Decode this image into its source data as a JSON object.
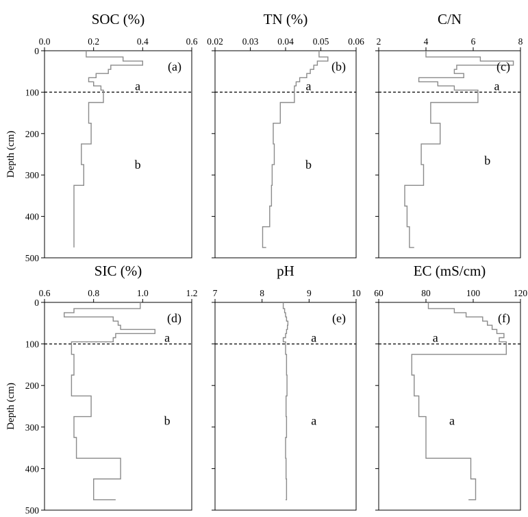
{
  "chart_data": [
    {
      "type": "line",
      "title": "SOC (%)",
      "panel_label": "(a)",
      "xlim": [
        0,
        0.6
      ],
      "xticks": [
        "0.0",
        "0.2",
        "0.4",
        "0.6"
      ],
      "ylabel": "Depth (cm)",
      "ylim": [
        0,
        500
      ],
      "yticks": [
        "0",
        "100",
        "200",
        "300",
        "400",
        "500"
      ],
      "reference_line_depth": 100,
      "significance_labels": [
        {
          "text": "a",
          "x": 0.38,
          "depth": 85
        },
        {
          "text": "b",
          "x": 0.38,
          "depth": 275
        }
      ],
      "series": [
        {
          "depth": [
            0,
            15,
            25,
            35,
            45,
            55,
            65,
            75,
            85,
            95,
            125,
            175,
            225,
            275,
            325,
            375,
            425,
            475
          ],
          "values": [
            0.17,
            0.32,
            0.4,
            0.27,
            0.26,
            0.21,
            0.18,
            0.2,
            0.23,
            0.24,
            0.18,
            0.19,
            0.15,
            0.16,
            0.12,
            0.12,
            0.12,
            0.12
          ]
        }
      ]
    },
    {
      "type": "line",
      "title": "TN (%)",
      "panel_label": "(b)",
      "xlim": [
        0.02,
        0.06
      ],
      "xticks": [
        "0.02",
        "0.03",
        "0.04",
        "0.05",
        "0.06"
      ],
      "ylim": [
        0,
        500
      ],
      "reference_line_depth": 100,
      "significance_labels": [
        {
          "text": "a",
          "x": 0.0465,
          "depth": 85
        },
        {
          "text": "b",
          "x": 0.0465,
          "depth": 275
        }
      ],
      "series": [
        {
          "depth": [
            0,
            15,
            25,
            35,
            45,
            55,
            65,
            75,
            85,
            95,
            125,
            175,
            225,
            275,
            325,
            375,
            425,
            475
          ],
          "values": [
            0.0495,
            0.052,
            0.049,
            0.048,
            0.047,
            0.046,
            0.044,
            0.043,
            0.0425,
            0.0425,
            0.0385,
            0.0365,
            0.0368,
            0.0362,
            0.036,
            0.0355,
            0.0335,
            0.0345
          ]
        }
      ]
    },
    {
      "type": "line",
      "title": "C/N",
      "panel_label": "(c)",
      "xlim": [
        2,
        8
      ],
      "xticks": [
        "2",
        "4",
        "6",
        "8"
      ],
      "ylim": [
        0,
        500
      ],
      "reference_line_depth": 100,
      "significance_labels": [
        {
          "text": "a",
          "x": 7.0,
          "depth": 85
        },
        {
          "text": "b",
          "x": 6.6,
          "depth": 265
        }
      ],
      "series": [
        {
          "depth": [
            0,
            15,
            25,
            35,
            45,
            55,
            65,
            75,
            85,
            95,
            125,
            175,
            225,
            275,
            325,
            375,
            425,
            475
          ],
          "values": [
            4.0,
            6.3,
            7.7,
            5.3,
            5.2,
            5.6,
            3.7,
            4.5,
            5.2,
            6.2,
            4.2,
            4.6,
            3.8,
            3.9,
            3.1,
            3.2,
            3.3,
            3.5
          ]
        }
      ]
    },
    {
      "type": "line",
      "title": "SIC (%)",
      "panel_label": "(d)",
      "xlim": [
        0.6,
        1.2
      ],
      "xticks": [
        "0.6",
        "0.8",
        "1.0",
        "1.2"
      ],
      "ylabel": "Depth (cm)",
      "ylim": [
        0,
        500
      ],
      "yticks": [
        "0",
        "100",
        "200",
        "300",
        "400",
        "500"
      ],
      "reference_line_depth": 100,
      "significance_labels": [
        {
          "text": "a",
          "x": 1.1,
          "depth": 85
        },
        {
          "text": "b",
          "x": 1.1,
          "depth": 285
        }
      ],
      "series": [
        {
          "depth": [
            0,
            15,
            25,
            35,
            45,
            55,
            65,
            75,
            85,
            95,
            125,
            175,
            225,
            275,
            325,
            375,
            425,
            475
          ],
          "values": [
            0.99,
            0.72,
            0.68,
            0.88,
            0.9,
            0.91,
            1.05,
            0.89,
            0.88,
            0.71,
            0.72,
            0.71,
            0.79,
            0.72,
            0.73,
            0.91,
            0.8,
            0.89
          ]
        }
      ]
    },
    {
      "type": "line",
      "title": "pH",
      "panel_label": "(e)",
      "xlim": [
        7,
        10
      ],
      "xticks": [
        "7",
        "8",
        "9",
        "10"
      ],
      "ylim": [
        0,
        500
      ],
      "reference_line_depth": 100,
      "significance_labels": [
        {
          "text": "a",
          "x": 9.1,
          "depth": 85
        },
        {
          "text": "a",
          "x": 9.1,
          "depth": 285
        }
      ],
      "series": [
        {
          "depth": [
            0,
            15,
            25,
            35,
            45,
            55,
            65,
            75,
            85,
            95,
            125,
            175,
            225,
            275,
            325,
            375,
            425,
            475
          ],
          "values": [
            8.45,
            8.48,
            8.5,
            8.52,
            8.55,
            8.54,
            8.52,
            8.5,
            8.45,
            8.5,
            8.52,
            8.53,
            8.51,
            8.52,
            8.5,
            8.51,
            8.52,
            8.5
          ]
        }
      ]
    },
    {
      "type": "line",
      "title": "EC (mS/cm)",
      "panel_label": "(f)",
      "xlim": [
        60,
        120
      ],
      "xticks": [
        "60",
        "80",
        "100",
        "120"
      ],
      "ylim": [
        0,
        500
      ],
      "reference_line_depth": 100,
      "significance_labels": [
        {
          "text": "a",
          "x": 84,
          "depth": 85
        },
        {
          "text": "a",
          "x": 91,
          "depth": 285
        }
      ],
      "series": [
        {
          "depth": [
            0,
            15,
            25,
            35,
            45,
            55,
            65,
            75,
            85,
            95,
            125,
            175,
            225,
            275,
            325,
            375,
            425,
            475
          ],
          "values": [
            81,
            92,
            97,
            104,
            106,
            108,
            110,
            113,
            111,
            114,
            74,
            75,
            77,
            80,
            80,
            99,
            101,
            98
          ]
        }
      ]
    }
  ]
}
